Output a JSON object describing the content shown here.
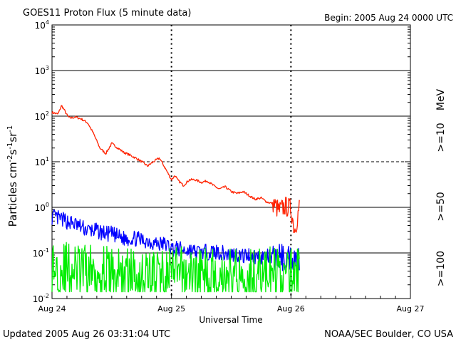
{
  "header": {
    "title": "GOES11 Proton Flux (5 minute data)",
    "begin": "Begin: 2005 Aug 24 0000 UTC"
  },
  "footer": {
    "updated": "Updated 2005 Aug 26 03:31:04 UTC",
    "credit": "NOAA/SEC Boulder, CO USA"
  },
  "colors": {
    "ge10": "#ff2200",
    "ge50": "#0000ff",
    "ge100": "#00ee00",
    "grid": "#000000"
  },
  "chart_data": {
    "type": "line",
    "title": "GOES11 Proton Flux (5 minute data)",
    "xlabel": "Universal Time",
    "ylabel": "Particles cm-2 s-1 sr-1",
    "y_scale": "log",
    "ylim": [
      0.01,
      10000
    ],
    "xlim_days": [
      0,
      3
    ],
    "x_ticks": [
      "Aug 24",
      "Aug 25",
      "Aug 26",
      "Aug 27"
    ],
    "y_ticks": [
      {
        "base": "10",
        "exp": "-2"
      },
      {
        "base": "10",
        "exp": "-1"
      },
      {
        "base": "10",
        "exp": "0"
      },
      {
        "base": "10",
        "exp": "1"
      },
      {
        "base": "10",
        "exp": "2"
      },
      {
        "base": "10",
        "exp": "3"
      },
      {
        "base": "10",
        "exp": "4"
      }
    ],
    "right_labels": {
      "unit": "MeV",
      "ge10": ">=10",
      "ge50": ">=50",
      "ge100": ">=100"
    },
    "series": [
      {
        "name": ">=10 MeV",
        "color": "#ff2200",
        "x": [
          0.0,
          0.05,
          0.08,
          0.1,
          0.13,
          0.15,
          0.2,
          0.25,
          0.3,
          0.35,
          0.4,
          0.45,
          0.5,
          0.55,
          0.6,
          0.65,
          0.7,
          0.75,
          0.8,
          0.85,
          0.9,
          0.95,
          1.0,
          1.03,
          1.05,
          1.1,
          1.15,
          1.2,
          1.25,
          1.3,
          1.35,
          1.4,
          1.45,
          1.5,
          1.55,
          1.6,
          1.65,
          1.7,
          1.75,
          1.8,
          1.85,
          1.9,
          1.95,
          2.0,
          2.03,
          2.05,
          2.07
        ],
        "y": [
          120,
          110,
          170,
          140,
          100,
          90,
          95,
          85,
          70,
          40,
          20,
          15,
          25,
          20,
          16,
          14,
          12,
          10,
          8,
          10,
          12,
          7,
          4,
          5,
          4,
          3,
          4,
          4,
          3.5,
          3.8,
          3,
          2.5,
          2.8,
          2.2,
          2,
          2.2,
          1.8,
          1.5,
          1.6,
          1.3,
          1.2,
          0.8,
          1.0,
          0.9,
          0.3,
          0.5,
          1.0
        ]
      },
      {
        "name": ">=50 MeV",
        "color": "#0000ff",
        "x": [
          0.0,
          0.05,
          0.1,
          0.15,
          0.2,
          0.25,
          0.3,
          0.35,
          0.4,
          0.45,
          0.5,
          0.55,
          0.6,
          0.65,
          0.7,
          0.75,
          0.8,
          0.85,
          0.9,
          0.95,
          1.0,
          1.05,
          1.1,
          1.15,
          1.2,
          1.25,
          1.3,
          1.35,
          1.4,
          1.45,
          1.5,
          1.55,
          1.6,
          1.65,
          1.7,
          1.75,
          1.8,
          1.85,
          1.9,
          1.95,
          2.0,
          2.05,
          2.07
        ],
        "y": [
          0.6,
          0.55,
          0.5,
          0.45,
          0.4,
          0.35,
          0.3,
          0.3,
          0.28,
          0.25,
          0.25,
          0.22,
          0.2,
          0.2,
          0.2,
          0.18,
          0.18,
          0.16,
          0.15,
          0.15,
          0.12,
          0.12,
          0.11,
          0.11,
          0.1,
          0.1,
          0.1,
          0.1,
          0.1,
          0.09,
          0.09,
          0.09,
          0.08,
          0.09,
          0.08,
          0.08,
          0.08,
          0.07,
          0.08,
          0.07,
          0.08,
          0.07,
          0.07
        ]
      },
      {
        "name": ">=100 MeV",
        "color": "#00ee00",
        "x": [
          0.0,
          0.1,
          0.2,
          0.3,
          0.4,
          0.5,
          0.6,
          0.7,
          0.8,
          0.9,
          1.0,
          1.1,
          1.2,
          1.3,
          1.4,
          1.5,
          1.6,
          1.7,
          1.8,
          1.9,
          2.0,
          2.07
        ],
        "y": [
          0.04,
          0.04,
          0.035,
          0.035,
          0.035,
          0.03,
          0.03,
          0.03,
          0.03,
          0.03,
          0.03,
          0.03,
          0.03,
          0.03,
          0.03,
          0.03,
          0.03,
          0.03,
          0.03,
          0.03,
          0.03,
          0.03
        ]
      }
    ],
    "grid": {
      "horizontal": true,
      "dashed_at_exp": [
        1
      ]
    }
  }
}
